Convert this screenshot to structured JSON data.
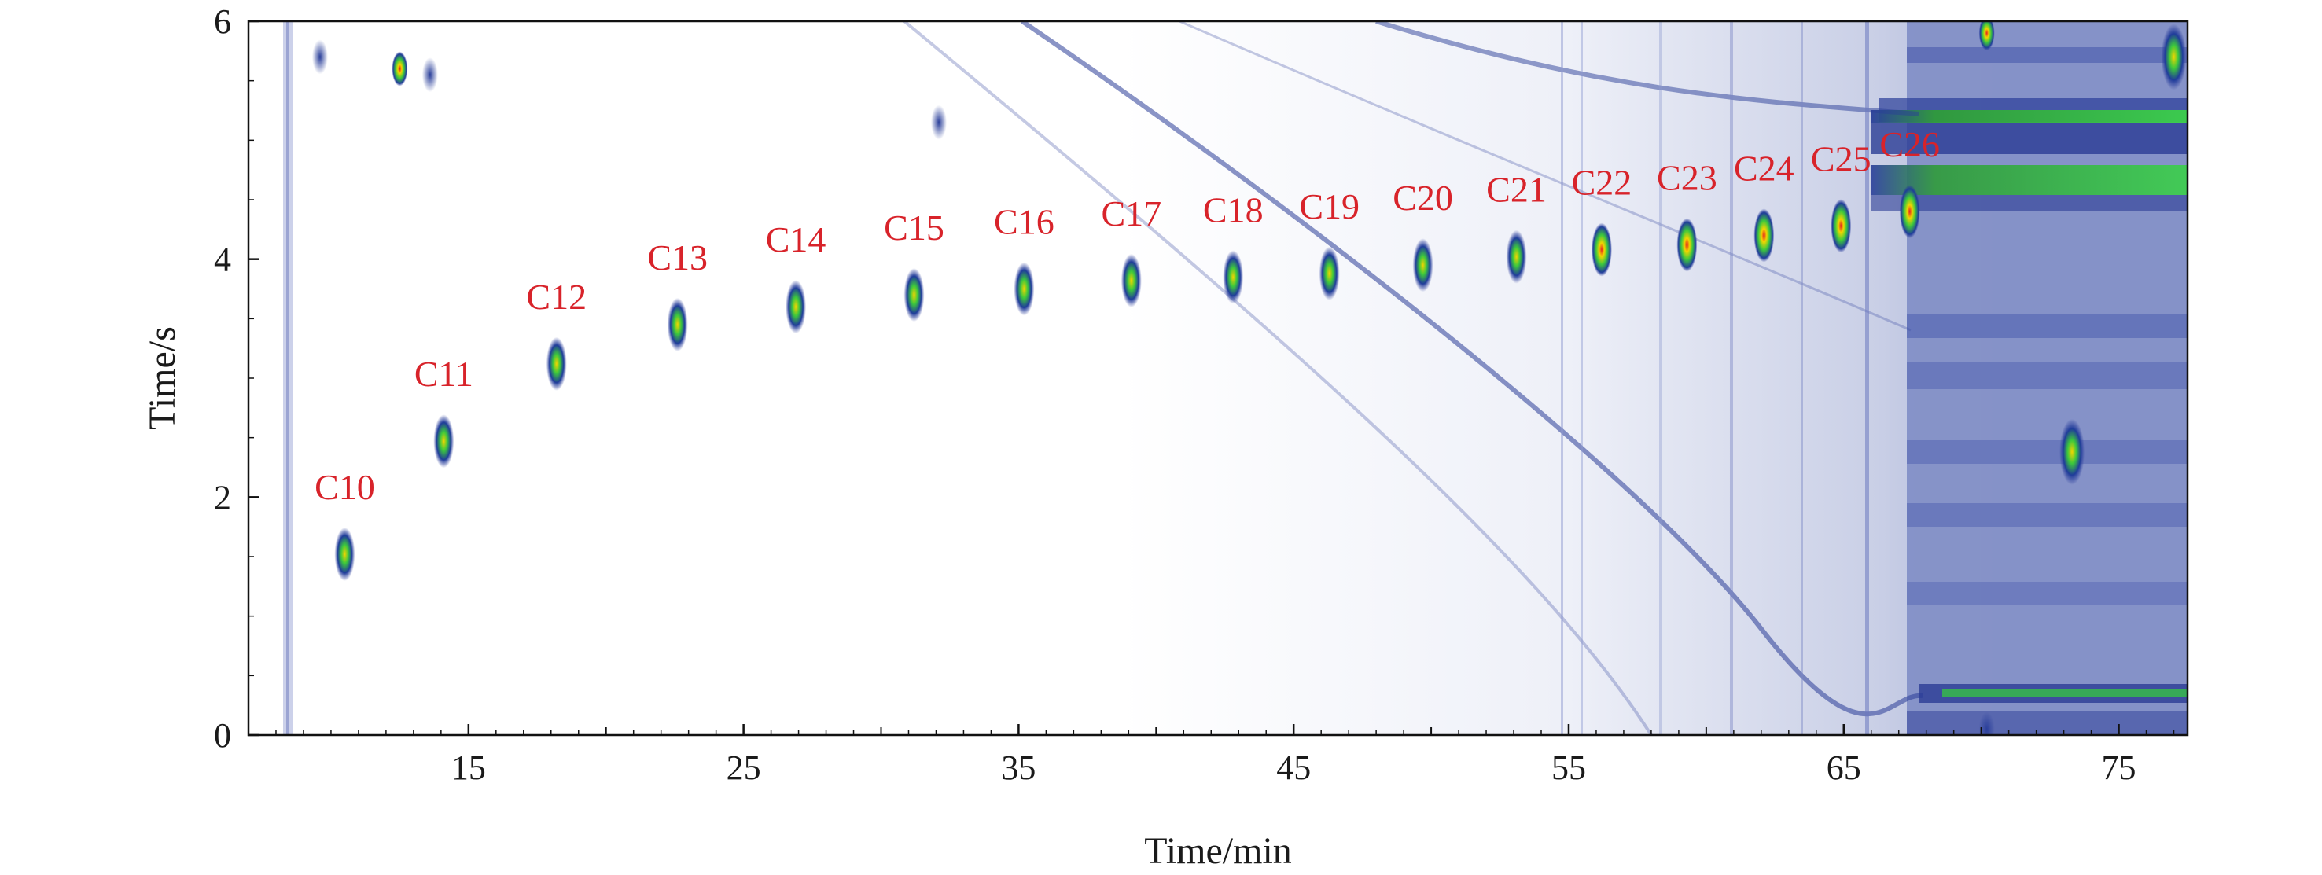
{
  "chart_data": {
    "type": "heatmap",
    "subtype": "GCxGC contour plot",
    "title": "",
    "xlabel": "Time/min",
    "ylabel": "Time/s",
    "xlim": [
      7,
      77.5
    ],
    "ylim": [
      0,
      6
    ],
    "x_ticks": [
      15,
      25,
      35,
      45,
      55,
      65,
      75
    ],
    "y_ticks": [
      0,
      2,
      4,
      6
    ],
    "grid": false,
    "colormap": [
      "#ffffff",
      "#1b2a8a",
      "#20c020",
      "#f0d000",
      "#e02020"
    ],
    "labeled_peaks": [
      {
        "label": "C10",
        "x": 10.5,
        "y": 1.52
      },
      {
        "label": "C11",
        "x": 14.1,
        "y": 2.47
      },
      {
        "label": "C12",
        "x": 18.2,
        "y": 3.12
      },
      {
        "label": "C13",
        "x": 22.6,
        "y": 3.45
      },
      {
        "label": "C14",
        "x": 26.9,
        "y": 3.6
      },
      {
        "label": "C15",
        "x": 31.2,
        "y": 3.7
      },
      {
        "label": "C16",
        "x": 35.2,
        "y": 3.75
      },
      {
        "label": "C17",
        "x": 39.1,
        "y": 3.82
      },
      {
        "label": "C18",
        "x": 42.8,
        "y": 3.85
      },
      {
        "label": "C19",
        "x": 46.3,
        "y": 3.88
      },
      {
        "label": "C20",
        "x": 49.7,
        "y": 3.95
      },
      {
        "label": "C21",
        "x": 53.1,
        "y": 4.02
      },
      {
        "label": "C22",
        "x": 56.2,
        "y": 4.08
      },
      {
        "label": "C23",
        "x": 59.3,
        "y": 4.12
      },
      {
        "label": "C24",
        "x": 62.1,
        "y": 4.2
      },
      {
        "label": "C25",
        "x": 64.9,
        "y": 4.28
      },
      {
        "label": "C26",
        "x": 67.4,
        "y": 4.4
      }
    ],
    "other_spots": [
      {
        "x": 9.6,
        "y": 5.7
      },
      {
        "x": 12.5,
        "y": 5.6
      },
      {
        "x": 13.6,
        "y": 5.55
      },
      {
        "x": 32.1,
        "y": 5.15
      },
      {
        "x": 70.2,
        "y": 5.9
      },
      {
        "x": 73.3,
        "y": 2.38
      },
      {
        "x": 77.0,
        "y": 5.7
      },
      {
        "x": 70.2,
        "y": 0.05
      }
    ]
  }
}
